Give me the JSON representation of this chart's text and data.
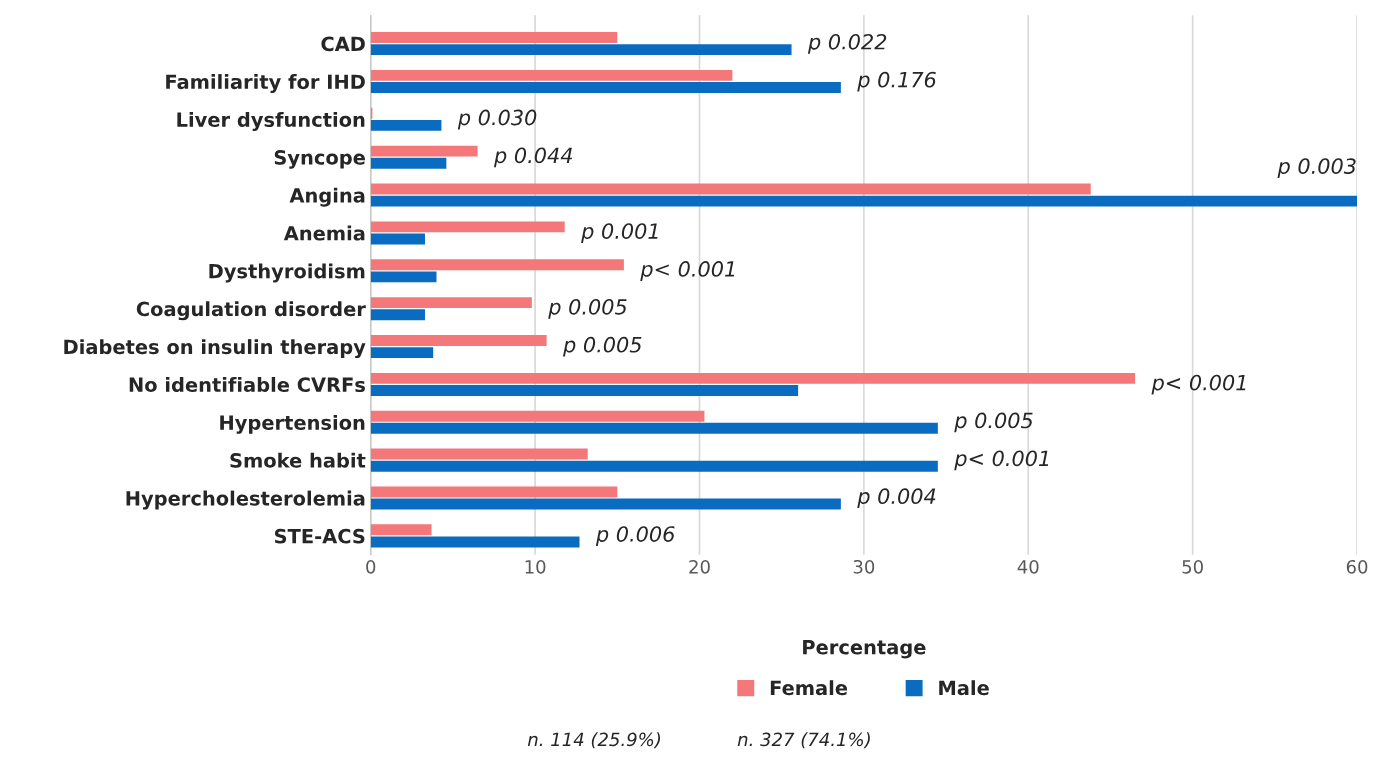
{
  "chart_data": {
    "type": "bar",
    "orientation": "horizontal",
    "xlabel": "Percentage",
    "categories": [
      "CAD",
      "Familiarity for IHD",
      "Liver dysfunction",
      "Syncope",
      "Angina",
      "Anemia",
      "Dysthyroidism",
      "Coagulation disorder",
      "Diabetes on insulin therapy",
      "No identifiable CVRFs",
      "Hypertension",
      "Smoke habit",
      "Hypercholesterolemia",
      "STE-ACS"
    ],
    "series": [
      {
        "name": "Female",
        "color": "#f4777a",
        "values": [
          15.0,
          22.0,
          0.1,
          6.5,
          43.8,
          11.8,
          15.4,
          9.8,
          10.7,
          46.5,
          20.3,
          13.2,
          15.0,
          3.7
        ]
      },
      {
        "name": "Male",
        "color": "#0a6cc0",
        "values": [
          25.6,
          28.6,
          4.3,
          4.6,
          60.0,
          3.3,
          4.0,
          3.3,
          3.8,
          26.0,
          34.5,
          34.5,
          28.6,
          12.7
        ]
      }
    ],
    "xlim": [
      0,
      60
    ],
    "xticks": [
      0,
      10,
      20,
      30,
      40,
      50,
      60
    ],
    "grid": "x",
    "legend": "bottom",
    "annotations": [
      "p 0.022",
      "p 0.176",
      "p 0.030",
      "p 0.044",
      "p 0.003",
      "p 0.001",
      "p< 0.001",
      "p 0.005",
      "p 0.005",
      "p< 0.001",
      "p 0.005",
      "p< 0.001",
      "p 0.004",
      "p 0.006",
      "n. 114 (25.9%)",
      "n. 327 (74.1%)"
    ]
  }
}
